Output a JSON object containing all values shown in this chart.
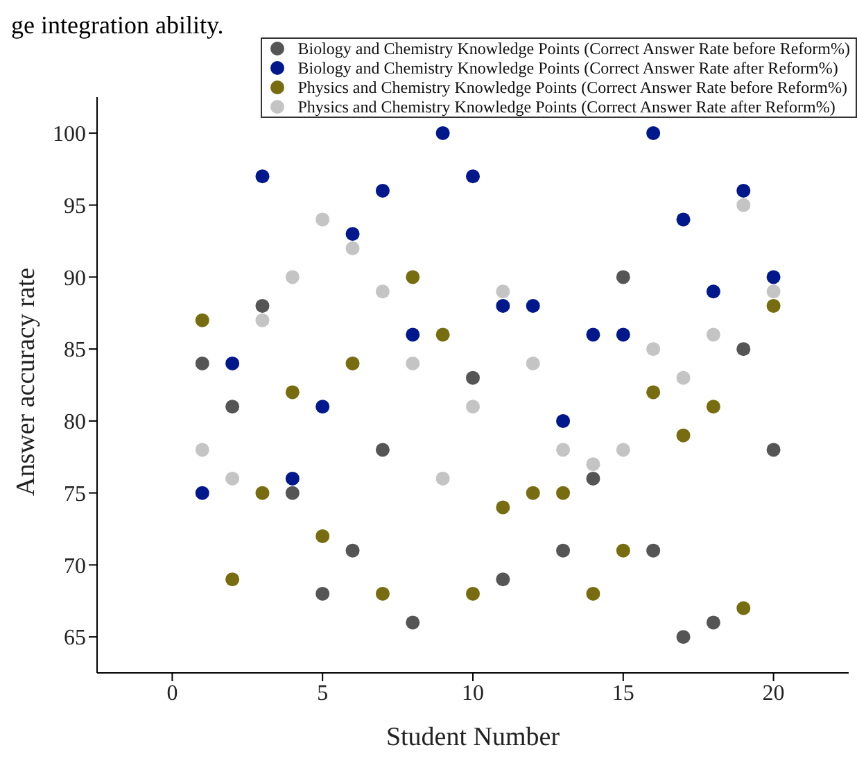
{
  "chart_data": {
    "type": "scatter",
    "xlabel": "Student Number",
    "ylabel": "Answer accuracy rate",
    "annotations": [
      "ge integration ability."
    ],
    "x": [
      1,
      2,
      3,
      4,
      5,
      6,
      7,
      8,
      9,
      10,
      11,
      12,
      13,
      14,
      15,
      16,
      17,
      18,
      19,
      20
    ],
    "series": [
      {
        "name": "Biology and Chemistry Knowledge Points (Correct Answer Rate before Reform%)",
        "color": "#555555",
        "values": [
          84,
          81,
          88,
          75,
          68,
          71,
          78,
          66,
          null,
          83,
          69,
          null,
          71,
          76,
          90,
          71,
          65,
          66,
          85,
          78
        ]
      },
      {
        "name": "Biology and Chemistry Knowledge Points (Correct Answer Rate after Reform%)",
        "color": "#00188c",
        "values": [
          75,
          84,
          97,
          76,
          81,
          93,
          96,
          86,
          100,
          97,
          88,
          88,
          80,
          86,
          86,
          100,
          94,
          89,
          96,
          90
        ]
      },
      {
        "name": "Physics and Chemistry Knowledge Points (Correct Answer Rate before Reform%)",
        "color": "#786c10",
        "values": [
          87,
          69,
          75,
          82,
          72,
          84,
          68,
          90,
          86,
          68,
          74,
          75,
          75,
          68,
          71,
          82,
          79,
          81,
          67,
          88
        ]
      },
      {
        "name": "Physics and Chemistry Knowledge Points (Correct Answer Rate after Reform%)",
        "color": "#c4c4c4",
        "values": [
          78,
          76,
          87,
          90,
          94,
          92,
          89,
          84,
          76,
          81,
          89,
          84,
          78,
          77,
          78,
          85,
          83,
          86,
          95,
          89
        ]
      }
    ],
    "xlim": [
      -2.5,
      22.5
    ],
    "xticks": [
      0,
      5,
      10,
      15,
      20
    ],
    "ylim": [
      62.5,
      102.5
    ],
    "yticks": [
      65,
      70,
      75,
      80,
      85,
      90,
      95,
      100
    ],
    "marker": "circle",
    "grid": false,
    "legend": "top right"
  }
}
